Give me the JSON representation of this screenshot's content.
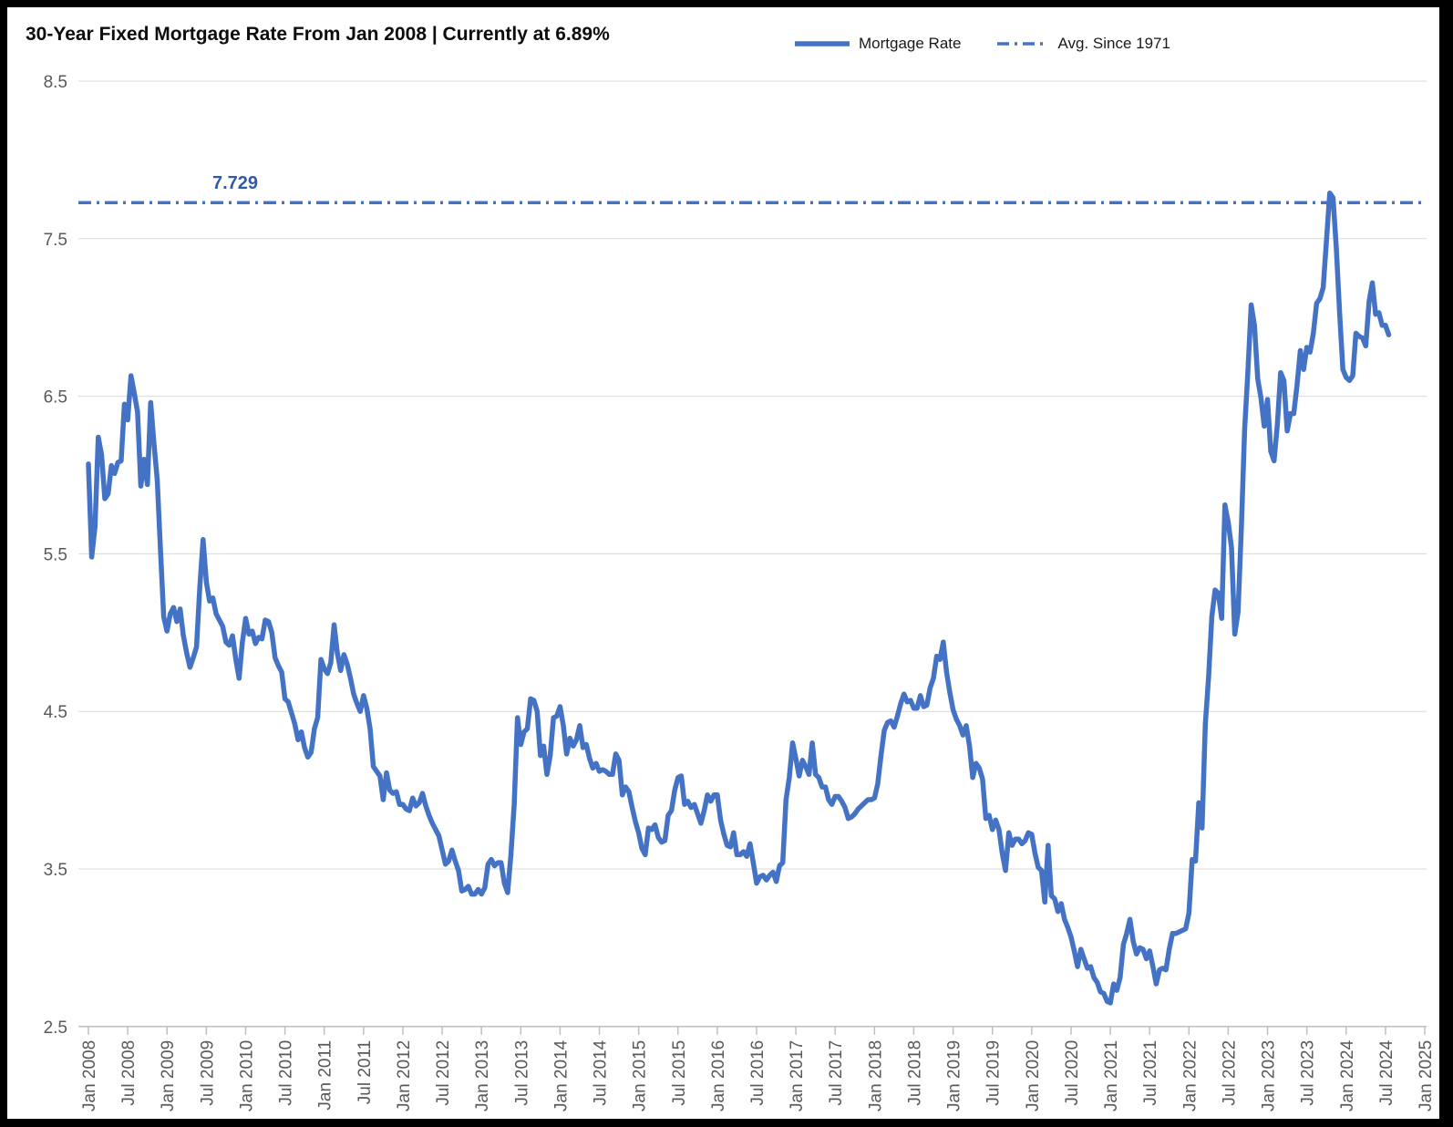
{
  "page": {
    "title": "30-Year Fixed Mortgage Rate From Jan 2008 | Currently at 6.89%"
  },
  "legend": {
    "mortgage_rate": "Mortgage Rate",
    "avg_since_1971": "Avg. Since 1971"
  },
  "chart_data": {
    "type": "line",
    "title": "30-Year Fixed Mortgage Rate From Jan 2008 | Currently at 6.89%",
    "current_rate": 6.89,
    "avg_since_1971": 7.729,
    "avg_label": "7.729",
    "ylim": [
      2.5,
      8.5
    ],
    "y_ticks": [
      8.5,
      7.5,
      6.5,
      5.5,
      4.5,
      3.5,
      2.5
    ],
    "y_tick_labels": [
      "8.5",
      "7.5",
      "6.5",
      "5.5",
      "4.5",
      "3.5",
      "2.5"
    ],
    "x_tick_labels": [
      "Jan 2008",
      "Jul 2008",
      "Jan 2009",
      "Jul 2009",
      "Jan 2010",
      "Jul 2010",
      "Jan 2011",
      "Jul 2011",
      "Jan 2012",
      "Jul 2012",
      "Jan 2013",
      "Jul 2013",
      "Jan 2014",
      "Jul 2014",
      "Jan 2015",
      "Jul 2015",
      "Jan 2016",
      "Jul 2016",
      "Jan 2017",
      "Jul 2017",
      "Jan 2018",
      "Jul 2018",
      "Jan 2019",
      "Jul 2019",
      "Jan 2020",
      "Jul 2020",
      "Jan 2021",
      "Jul 2021",
      "Jan 2022",
      "Jul 2022",
      "Jan 2023",
      "Jul 2023",
      "Jan 2024",
      "Jul 2024",
      "Jan 2025"
    ],
    "grid": "horizontal",
    "legend_position": "top-right",
    "series": [
      {
        "name": "Mortgage Rate",
        "start": "Jan 2008",
        "end": "Jul 2024",
        "points_per_month": 2,
        "values": [
          6.07,
          5.48,
          5.67,
          6.24,
          6.13,
          5.85,
          5.88,
          6.06,
          6.01,
          6.08,
          6.09,
          6.45,
          6.35,
          6.63,
          6.52,
          6.4,
          5.93,
          6.1,
          5.94,
          6.46,
          6.2,
          5.97,
          5.53,
          5.1,
          5.01,
          5.12,
          5.16,
          5.07,
          5.15,
          4.98,
          4.87,
          4.78,
          4.84,
          4.91,
          5.29,
          5.59,
          5.32,
          5.2,
          5.22,
          5.12,
          5.08,
          5.04,
          4.94,
          4.92,
          4.98,
          4.83,
          4.71,
          4.94,
          5.09,
          4.99,
          5.01,
          4.93,
          4.97,
          4.96,
          5.08,
          5.07,
          5.0,
          4.84,
          4.79,
          4.75,
          4.58,
          4.56,
          4.49,
          4.42,
          4.32,
          4.37,
          4.27,
          4.21,
          4.24,
          4.39,
          4.46,
          4.83,
          4.77,
          4.74,
          4.81,
          5.05,
          4.87,
          4.76,
          4.86,
          4.8,
          4.71,
          4.61,
          4.55,
          4.5,
          4.6,
          4.52,
          4.39,
          4.15,
          4.12,
          4.09,
          3.94,
          4.11,
          4.0,
          3.98,
          3.99,
          3.91,
          3.91,
          3.88,
          3.87,
          3.95,
          3.9,
          3.92,
          3.98,
          3.9,
          3.84,
          3.79,
          3.75,
          3.71,
          3.62,
          3.53,
          3.55,
          3.62,
          3.55,
          3.49,
          3.36,
          3.37,
          3.39,
          3.34,
          3.34,
          3.37,
          3.34,
          3.38,
          3.53,
          3.56,
          3.52,
          3.54,
          3.54,
          3.41,
          3.35,
          3.59,
          3.91,
          4.46,
          4.29,
          4.37,
          4.39,
          4.58,
          4.57,
          4.5,
          4.22,
          4.28,
          4.1,
          4.22,
          4.46,
          4.47,
          4.53,
          4.41,
          4.23,
          4.33,
          4.28,
          4.32,
          4.41,
          4.27,
          4.29,
          4.2,
          4.14,
          4.17,
          4.12,
          4.13,
          4.12,
          4.1,
          4.1,
          4.23,
          4.19,
          3.97,
          4.02,
          3.99,
          3.89,
          3.8,
          3.73,
          3.63,
          3.59,
          3.76,
          3.75,
          3.78,
          3.7,
          3.67,
          3.68,
          3.84,
          3.87,
          4.0,
          4.08,
          4.09,
          3.91,
          3.93,
          3.89,
          3.91,
          3.85,
          3.79,
          3.87,
          3.97,
          3.93,
          3.97,
          3.97,
          3.81,
          3.72,
          3.65,
          3.64,
          3.73,
          3.59,
          3.59,
          3.61,
          3.58,
          3.66,
          3.54,
          3.41,
          3.45,
          3.46,
          3.43,
          3.46,
          3.48,
          3.42,
          3.52,
          3.54,
          3.94,
          4.08,
          4.3,
          4.2,
          4.09,
          4.19,
          4.15,
          4.1,
          4.3,
          4.1,
          4.08,
          4.02,
          4.02,
          3.94,
          3.91,
          3.96,
          3.96,
          3.93,
          3.89,
          3.82,
          3.83,
          3.85,
          3.88,
          3.9,
          3.92,
          3.94,
          3.94,
          3.95,
          4.04,
          4.22,
          4.38,
          4.43,
          4.44,
          4.4,
          4.47,
          4.55,
          4.61,
          4.56,
          4.57,
          4.52,
          4.52,
          4.6,
          4.53,
          4.54,
          4.65,
          4.71,
          4.85,
          4.83,
          4.94,
          4.75,
          4.62,
          4.51,
          4.45,
          4.41,
          4.35,
          4.41,
          4.28,
          4.08,
          4.17,
          4.14,
          4.07,
          3.82,
          3.84,
          3.75,
          3.81,
          3.75,
          3.6,
          3.49,
          3.73,
          3.65,
          3.69,
          3.69,
          3.66,
          3.68,
          3.73,
          3.72,
          3.6,
          3.51,
          3.49,
          3.29,
          3.65,
          3.33,
          3.31,
          3.23,
          3.28,
          3.18,
          3.13,
          3.07,
          2.98,
          2.88,
          2.99,
          2.93,
          2.87,
          2.88,
          2.81,
          2.78,
          2.72,
          2.71,
          2.66,
          2.65,
          2.77,
          2.73,
          2.81,
          3.02,
          3.09,
          3.18,
          3.04,
          2.96,
          3.0,
          2.99,
          2.93,
          2.98,
          2.88,
          2.77,
          2.86,
          2.87,
          2.86,
          2.99,
          3.09,
          3.09,
          3.1,
          3.11,
          3.12,
          3.22,
          3.56,
          3.55,
          3.92,
          3.76,
          4.42,
          4.72,
          5.1,
          5.27,
          5.25,
          5.09,
          5.81,
          5.7,
          5.54,
          4.99,
          5.13,
          5.66,
          6.29,
          6.66,
          7.08,
          6.95,
          6.61,
          6.49,
          6.31,
          6.48,
          6.15,
          6.09,
          6.32,
          6.65,
          6.6,
          6.28,
          6.39,
          6.39,
          6.57,
          6.79,
          6.67,
          6.81,
          6.78,
          6.9,
          7.09,
          7.12,
          7.19,
          7.49,
          7.79,
          7.76,
          7.44,
          7.03,
          6.67,
          6.62,
          6.6,
          6.63,
          6.9,
          6.88,
          6.87,
          6.82,
          7.1,
          7.22,
          7.02,
          7.03,
          6.95,
          6.95,
          6.89
        ]
      },
      {
        "name": "Avg. Since 1971",
        "style": "dash-dot",
        "value": 7.729
      }
    ],
    "colors": {
      "mortgage_rate_line": "#4472C4",
      "avg_line": "#4472C4",
      "avg_value_label": "#2F5CA8",
      "gridline": "#D9D9D9",
      "axis": "#BFBFBF",
      "axis_labels": "#595959",
      "title": "#0D0D0D",
      "background": "#FFFFFF",
      "frame": "#000000"
    }
  }
}
